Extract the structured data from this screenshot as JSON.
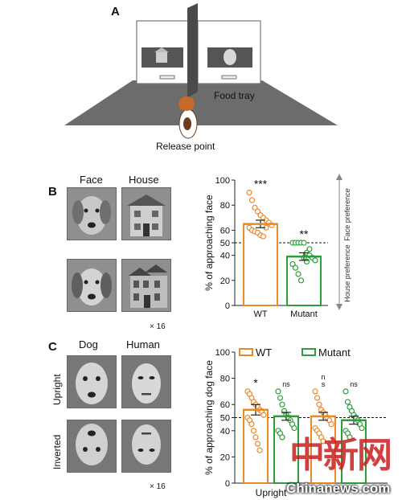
{
  "panel_a": {
    "letter": "A",
    "food_tray": "Food tray",
    "release_point": "Release point"
  },
  "panel_b": {
    "letter": "B",
    "col_face": "Face",
    "col_house": "House",
    "multiplier": "× 16",
    "preference_up": "Face preference",
    "preference_down": "House preference"
  },
  "panel_c": {
    "letter": "C",
    "col_dog": "Dog",
    "col_human": "Human",
    "row_upright": "Upright",
    "row_inverted": "Inverted",
    "multiplier": "× 16",
    "x_label_visible": "Upright"
  },
  "watermark": {
    "chinese": "中新网",
    "site": "Chinanews.com"
  },
  "colors": {
    "wt": "#e8892a",
    "mutant": "#2e9e3a"
  },
  "chart_data": [
    {
      "type": "bar",
      "panel": "B",
      "ylabel": "% of approaching face",
      "ylim": [
        0,
        100
      ],
      "yticks": [
        0,
        20,
        40,
        50,
        60,
        80,
        100
      ],
      "reference_line": 50,
      "categories": [
        "WT",
        "Mutant"
      ],
      "values": [
        65,
        39
      ],
      "errors": [
        3,
        3
      ],
      "significance": [
        "***",
        "**"
      ],
      "points": [
        [
          90,
          84,
          78,
          75,
          72,
          70,
          68,
          66,
          64,
          62,
          60,
          59,
          58,
          56,
          55,
          62
        ],
        [
          50,
          50,
          50,
          50,
          50,
          42,
          40,
          38,
          36,
          33,
          30,
          25,
          20,
          38,
          35,
          45
        ]
      ]
    },
    {
      "type": "bar",
      "panel": "C",
      "ylabel": "% of approaching dog face",
      "ylim": [
        0,
        100
      ],
      "yticks": [
        0,
        20,
        40,
        50,
        60,
        80,
        100
      ],
      "reference_line": 50,
      "legend": "top",
      "series": [
        {
          "name": "WT",
          "values": [
            56,
            51
          ],
          "errors": [
            4,
            3
          ]
        },
        {
          "name": "Mutant",
          "values": [
            51,
            48
          ],
          "errors": [
            3,
            3
          ]
        }
      ],
      "significance": [
        "*",
        "ns",
        "n\ns",
        "ns"
      ],
      "points": [
        [
          70,
          68,
          65,
          62,
          60,
          58,
          56,
          55,
          52,
          50,
          48,
          45,
          40,
          35,
          30,
          25
        ],
        [
          70,
          65,
          60,
          55,
          52,
          50,
          48,
          45,
          42,
          40,
          38,
          35
        ],
        [
          70,
          65,
          60,
          56,
          54,
          52,
          50,
          48,
          45,
          42,
          40,
          38,
          35,
          32
        ],
        [
          70,
          62,
          58,
          55,
          52,
          50,
          48,
          45,
          42,
          40,
          38,
          35
        ]
      ]
    }
  ]
}
